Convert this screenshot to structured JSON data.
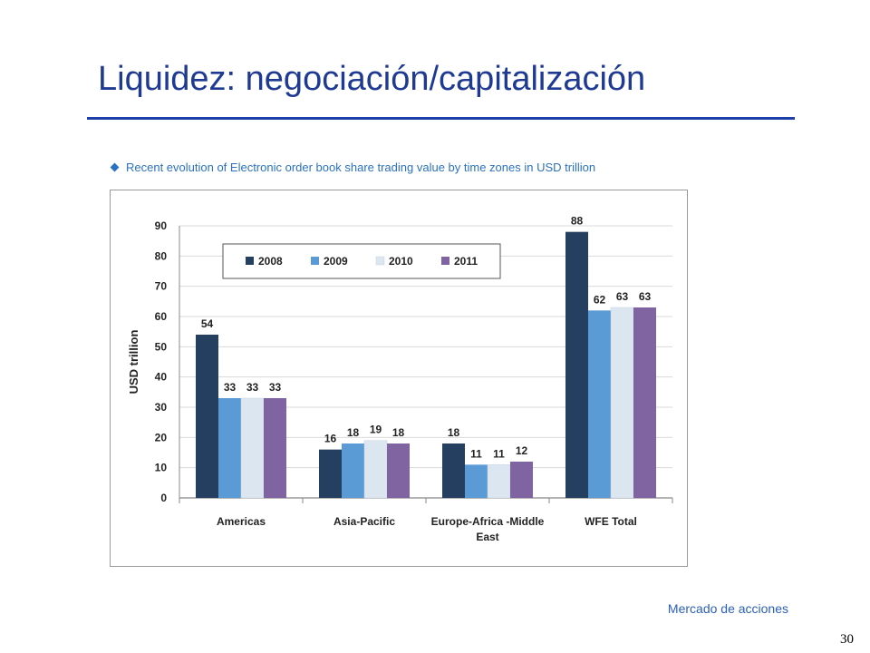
{
  "slide": {
    "title": "Liquidez: negociación/capitalización",
    "footer": "Mercado de acciones",
    "page_number": "30"
  },
  "colors": {
    "title": "#1F3A93",
    "rule": "#1F3FA8",
    "subtitle": "#2B72C0",
    "series": [
      "#243F60",
      "#5B9BD5",
      "#DCE6F1",
      "#8064A2"
    ]
  },
  "chart_data": {
    "type": "bar",
    "title": "Recent evolution of Electronic order book share trading value by time zones in USD trillion",
    "xlabel": "",
    "ylabel": "USD trillion",
    "ylim": [
      0,
      90
    ],
    "yticks": [
      0,
      10,
      20,
      30,
      40,
      50,
      60,
      70,
      80,
      90
    ],
    "grid": true,
    "legend_position": "top-left",
    "categories": [
      [
        "Americas"
      ],
      [
        "Asia-Pacific"
      ],
      [
        "Europe-Africa -Middle",
        "East"
      ],
      [
        "WFE Total"
      ]
    ],
    "series": [
      {
        "name": "2008",
        "values": [
          54,
          16,
          18,
          88
        ]
      },
      {
        "name": "2009",
        "values": [
          33,
          18,
          11,
          62
        ]
      },
      {
        "name": "2010",
        "values": [
          33,
          19,
          11,
          63
        ]
      },
      {
        "name": "2011",
        "values": [
          33,
          18,
          12,
          63
        ]
      }
    ]
  }
}
